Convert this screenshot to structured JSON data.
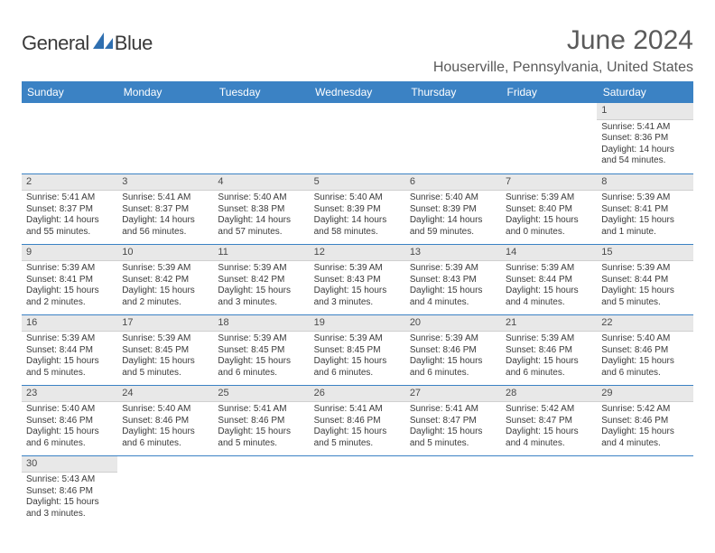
{
  "logo": {
    "text1": "General",
    "text2": "Blue"
  },
  "title": "June 2024",
  "location": "Houserville, Pennsylvania, United States",
  "colors": {
    "header_bg": "#3b82c4",
    "header_text": "#ffffff",
    "daynum_bg": "#e8e8e8",
    "text": "#3a3a3a",
    "title_text": "#5a5a5a",
    "cell_border": "#3b82c4"
  },
  "day_headers": [
    "Sunday",
    "Monday",
    "Tuesday",
    "Wednesday",
    "Thursday",
    "Friday",
    "Saturday"
  ],
  "weeks": [
    [
      null,
      null,
      null,
      null,
      null,
      null,
      {
        "n": "1",
        "sr": "Sunrise: 5:41 AM",
        "ss": "Sunset: 8:36 PM",
        "dl1": "Daylight: 14 hours",
        "dl2": "and 54 minutes."
      }
    ],
    [
      {
        "n": "2",
        "sr": "Sunrise: 5:41 AM",
        "ss": "Sunset: 8:37 PM",
        "dl1": "Daylight: 14 hours",
        "dl2": "and 55 minutes."
      },
      {
        "n": "3",
        "sr": "Sunrise: 5:41 AM",
        "ss": "Sunset: 8:37 PM",
        "dl1": "Daylight: 14 hours",
        "dl2": "and 56 minutes."
      },
      {
        "n": "4",
        "sr": "Sunrise: 5:40 AM",
        "ss": "Sunset: 8:38 PM",
        "dl1": "Daylight: 14 hours",
        "dl2": "and 57 minutes."
      },
      {
        "n": "5",
        "sr": "Sunrise: 5:40 AM",
        "ss": "Sunset: 8:39 PM",
        "dl1": "Daylight: 14 hours",
        "dl2": "and 58 minutes."
      },
      {
        "n": "6",
        "sr": "Sunrise: 5:40 AM",
        "ss": "Sunset: 8:39 PM",
        "dl1": "Daylight: 14 hours",
        "dl2": "and 59 minutes."
      },
      {
        "n": "7",
        "sr": "Sunrise: 5:39 AM",
        "ss": "Sunset: 8:40 PM",
        "dl1": "Daylight: 15 hours",
        "dl2": "and 0 minutes."
      },
      {
        "n": "8",
        "sr": "Sunrise: 5:39 AM",
        "ss": "Sunset: 8:41 PM",
        "dl1": "Daylight: 15 hours",
        "dl2": "and 1 minute."
      }
    ],
    [
      {
        "n": "9",
        "sr": "Sunrise: 5:39 AM",
        "ss": "Sunset: 8:41 PM",
        "dl1": "Daylight: 15 hours",
        "dl2": "and 2 minutes."
      },
      {
        "n": "10",
        "sr": "Sunrise: 5:39 AM",
        "ss": "Sunset: 8:42 PM",
        "dl1": "Daylight: 15 hours",
        "dl2": "and 2 minutes."
      },
      {
        "n": "11",
        "sr": "Sunrise: 5:39 AM",
        "ss": "Sunset: 8:42 PM",
        "dl1": "Daylight: 15 hours",
        "dl2": "and 3 minutes."
      },
      {
        "n": "12",
        "sr": "Sunrise: 5:39 AM",
        "ss": "Sunset: 8:43 PM",
        "dl1": "Daylight: 15 hours",
        "dl2": "and 3 minutes."
      },
      {
        "n": "13",
        "sr": "Sunrise: 5:39 AM",
        "ss": "Sunset: 8:43 PM",
        "dl1": "Daylight: 15 hours",
        "dl2": "and 4 minutes."
      },
      {
        "n": "14",
        "sr": "Sunrise: 5:39 AM",
        "ss": "Sunset: 8:44 PM",
        "dl1": "Daylight: 15 hours",
        "dl2": "and 4 minutes."
      },
      {
        "n": "15",
        "sr": "Sunrise: 5:39 AM",
        "ss": "Sunset: 8:44 PM",
        "dl1": "Daylight: 15 hours",
        "dl2": "and 5 minutes."
      }
    ],
    [
      {
        "n": "16",
        "sr": "Sunrise: 5:39 AM",
        "ss": "Sunset: 8:44 PM",
        "dl1": "Daylight: 15 hours",
        "dl2": "and 5 minutes."
      },
      {
        "n": "17",
        "sr": "Sunrise: 5:39 AM",
        "ss": "Sunset: 8:45 PM",
        "dl1": "Daylight: 15 hours",
        "dl2": "and 5 minutes."
      },
      {
        "n": "18",
        "sr": "Sunrise: 5:39 AM",
        "ss": "Sunset: 8:45 PM",
        "dl1": "Daylight: 15 hours",
        "dl2": "and 6 minutes."
      },
      {
        "n": "19",
        "sr": "Sunrise: 5:39 AM",
        "ss": "Sunset: 8:45 PM",
        "dl1": "Daylight: 15 hours",
        "dl2": "and 6 minutes."
      },
      {
        "n": "20",
        "sr": "Sunrise: 5:39 AM",
        "ss": "Sunset: 8:46 PM",
        "dl1": "Daylight: 15 hours",
        "dl2": "and 6 minutes."
      },
      {
        "n": "21",
        "sr": "Sunrise: 5:39 AM",
        "ss": "Sunset: 8:46 PM",
        "dl1": "Daylight: 15 hours",
        "dl2": "and 6 minutes."
      },
      {
        "n": "22",
        "sr": "Sunrise: 5:40 AM",
        "ss": "Sunset: 8:46 PM",
        "dl1": "Daylight: 15 hours",
        "dl2": "and 6 minutes."
      }
    ],
    [
      {
        "n": "23",
        "sr": "Sunrise: 5:40 AM",
        "ss": "Sunset: 8:46 PM",
        "dl1": "Daylight: 15 hours",
        "dl2": "and 6 minutes."
      },
      {
        "n": "24",
        "sr": "Sunrise: 5:40 AM",
        "ss": "Sunset: 8:46 PM",
        "dl1": "Daylight: 15 hours",
        "dl2": "and 6 minutes."
      },
      {
        "n": "25",
        "sr": "Sunrise: 5:41 AM",
        "ss": "Sunset: 8:46 PM",
        "dl1": "Daylight: 15 hours",
        "dl2": "and 5 minutes."
      },
      {
        "n": "26",
        "sr": "Sunrise: 5:41 AM",
        "ss": "Sunset: 8:46 PM",
        "dl1": "Daylight: 15 hours",
        "dl2": "and 5 minutes."
      },
      {
        "n": "27",
        "sr": "Sunrise: 5:41 AM",
        "ss": "Sunset: 8:47 PM",
        "dl1": "Daylight: 15 hours",
        "dl2": "and 5 minutes."
      },
      {
        "n": "28",
        "sr": "Sunrise: 5:42 AM",
        "ss": "Sunset: 8:47 PM",
        "dl1": "Daylight: 15 hours",
        "dl2": "and 4 minutes."
      },
      {
        "n": "29",
        "sr": "Sunrise: 5:42 AM",
        "ss": "Sunset: 8:46 PM",
        "dl1": "Daylight: 15 hours",
        "dl2": "and 4 minutes."
      }
    ],
    [
      {
        "n": "30",
        "sr": "Sunrise: 5:43 AM",
        "ss": "Sunset: 8:46 PM",
        "dl1": "Daylight: 15 hours",
        "dl2": "and 3 minutes."
      },
      null,
      null,
      null,
      null,
      null,
      null
    ]
  ]
}
